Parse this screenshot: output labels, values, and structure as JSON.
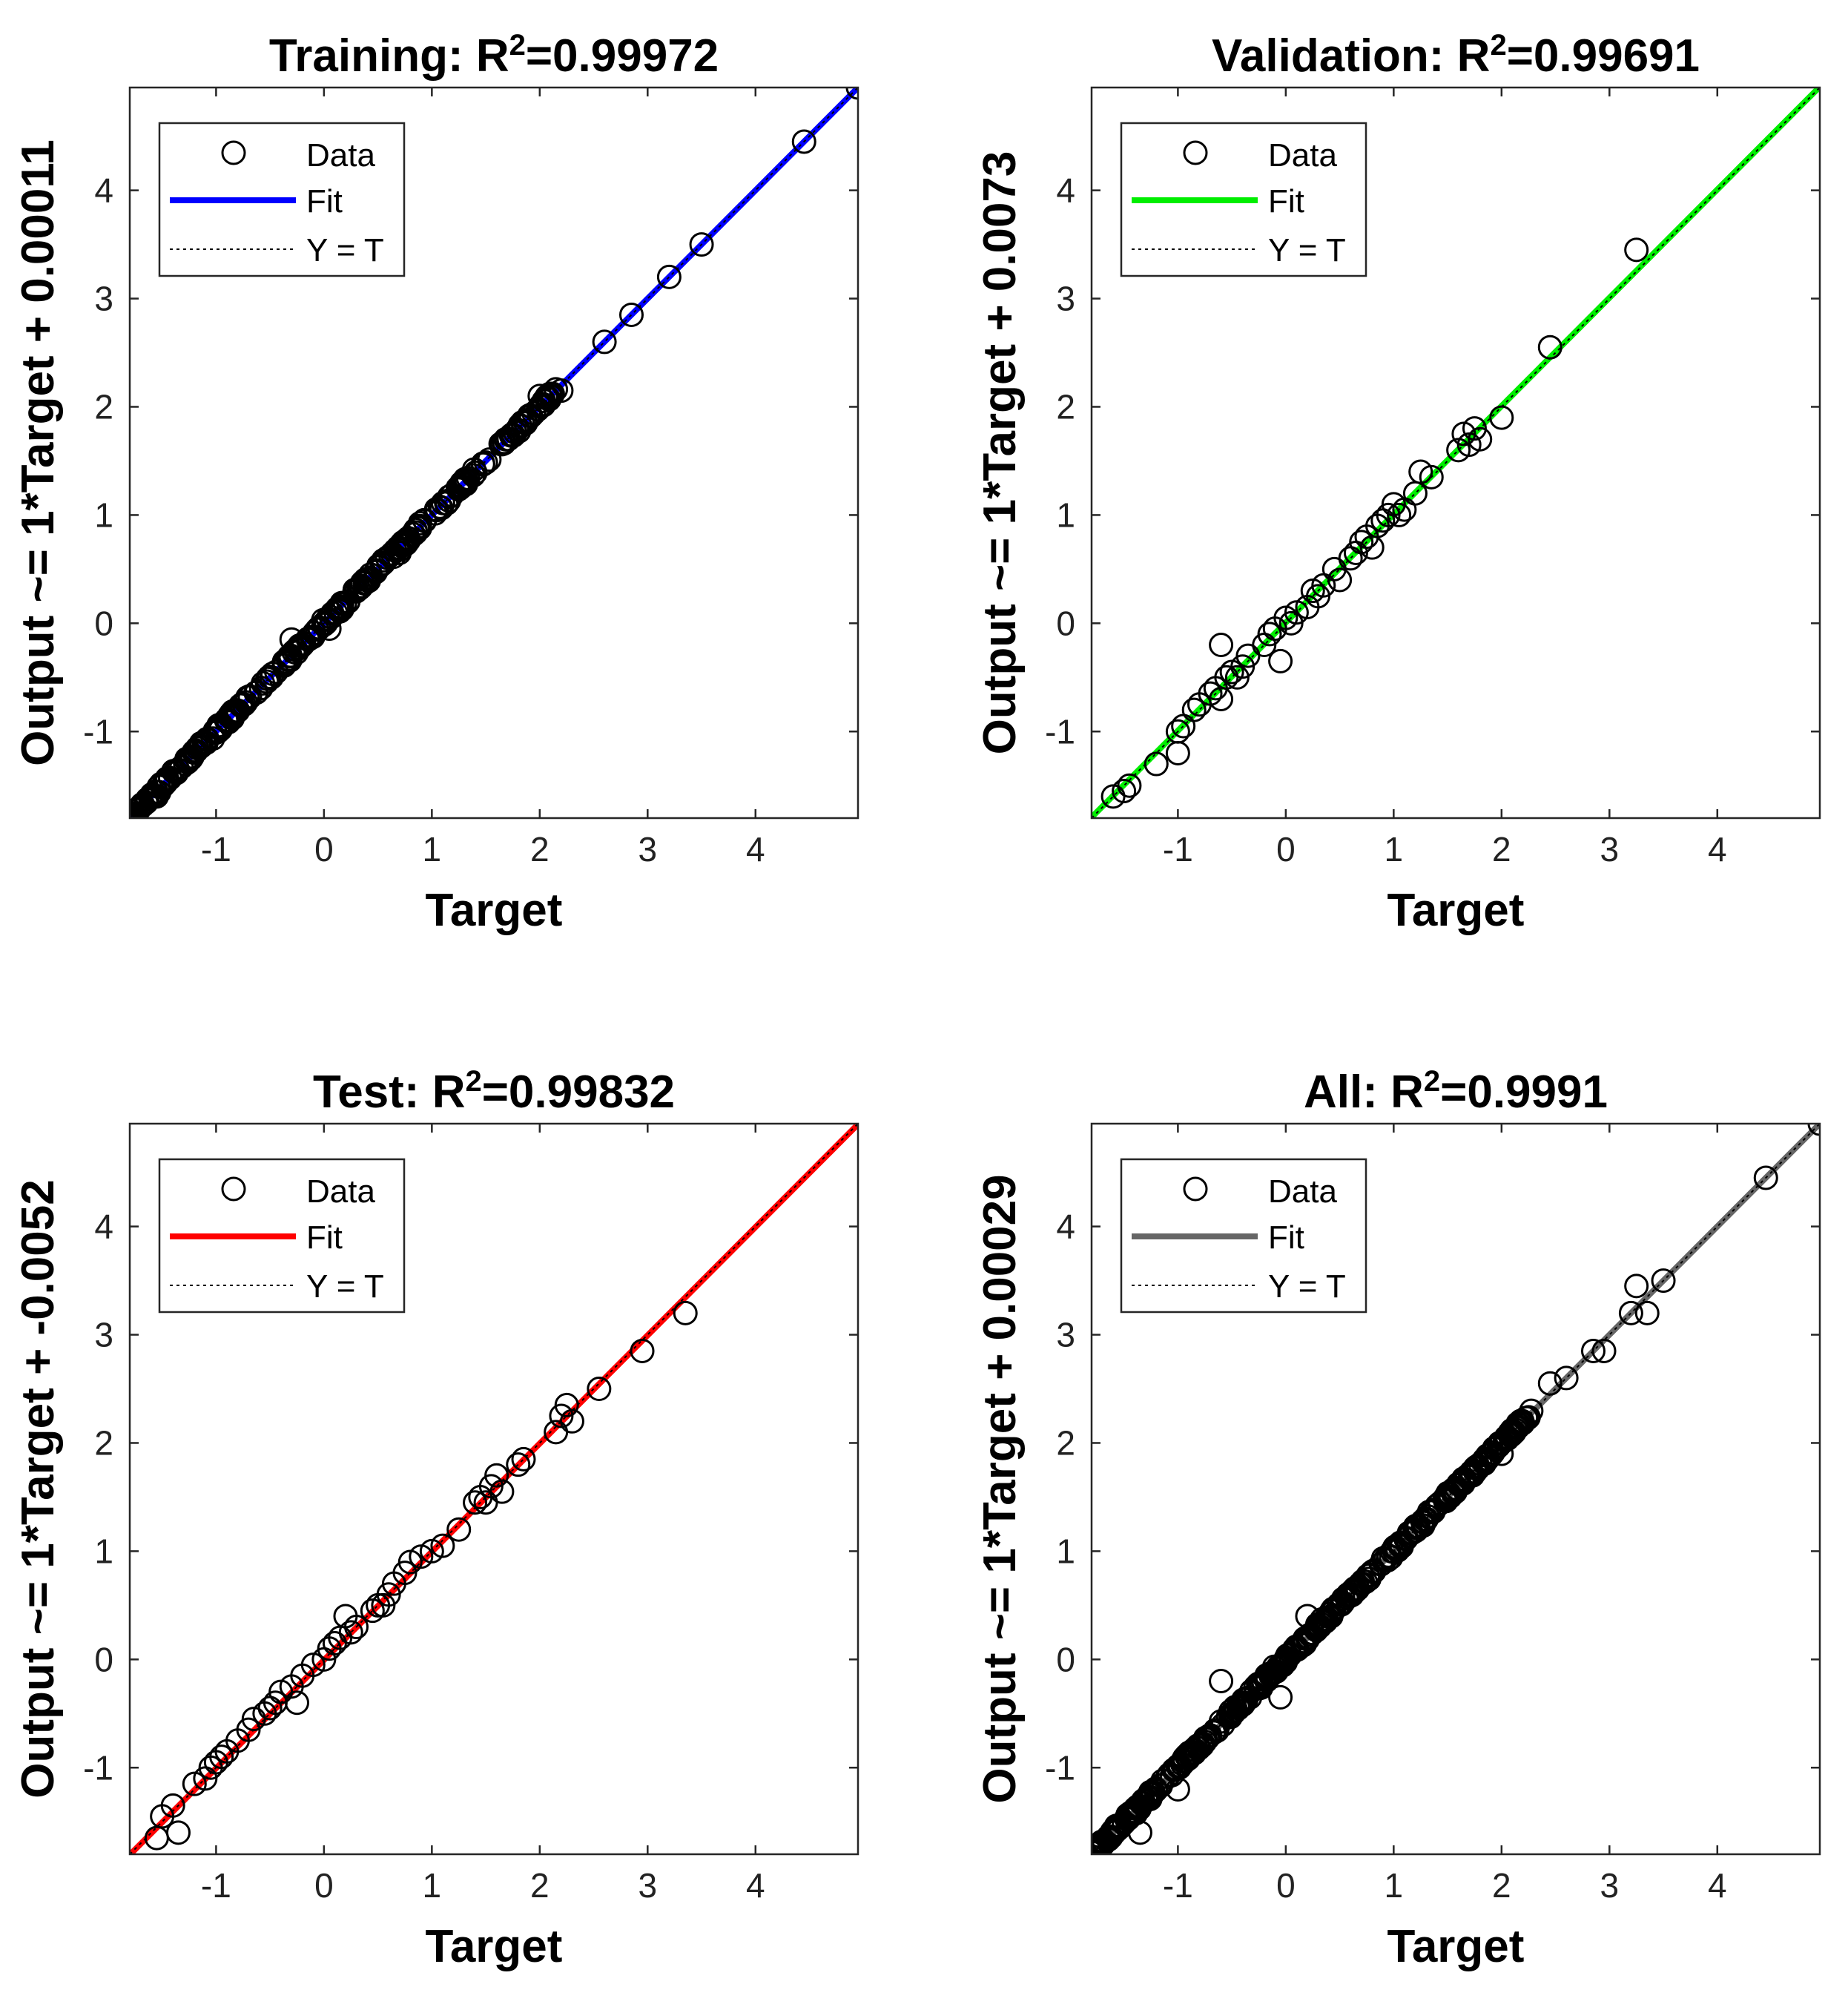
{
  "colors": {
    "training_fit": "#0000ff",
    "validation_fit": "#00ee00",
    "test_fit": "#ff0000",
    "all_fit": "#666666",
    "points": "#000000"
  },
  "legend_labels": {
    "data": "Data",
    "fit": "Fit",
    "reference": "Y = T"
  },
  "chart_data": [
    {
      "type": "scatter",
      "panel": "training",
      "title_prefix": "Training: R",
      "title_sup": "2",
      "title_value": "=0.99972",
      "xlabel": "Target",
      "ylabel": "Output ~= 1*Target + 0.00011",
      "xlim": [
        -1.8,
        4.95
      ],
      "ylim": [
        -1.8,
        4.95
      ],
      "xticks": [
        "-1",
        "0",
        "1",
        "2",
        "3",
        "4"
      ],
      "yticks": [
        "-1",
        "0",
        "1",
        "2",
        "3",
        "4"
      ],
      "fit": {
        "slope": 1,
        "intercept": 0.00011
      },
      "legend_position": "top-left",
      "outliers": [
        [
          -1.8,
          -1.82
        ],
        [
          -1.7,
          -1.7
        ],
        [
          -1.55,
          -1.6
        ],
        [
          -0.3,
          -0.15
        ],
        [
          0.05,
          -0.05
        ],
        [
          0.7,
          0.65
        ],
        [
          2.0,
          2.1
        ],
        [
          2.2,
          2.15
        ],
        [
          2.6,
          2.6
        ],
        [
          2.85,
          2.85
        ],
        [
          3.2,
          3.2
        ],
        [
          3.5,
          3.5
        ],
        [
          4.45,
          4.45
        ],
        [
          4.95,
          4.95
        ]
      ],
      "point_count_estimate": 300,
      "dense_range": [
        -1.8,
        2.2
      ]
    },
    {
      "type": "scatter",
      "panel": "validation",
      "title_prefix": "Validation: R",
      "title_sup": "2",
      "title_value": "=0.99691",
      "xlabel": "Target",
      "ylabel": "Output ~= 1*Target + 0.0073",
      "xlim": [
        -1.8,
        4.95
      ],
      "ylim": [
        -1.8,
        4.95
      ],
      "xticks": [
        "-1",
        "0",
        "1",
        "2",
        "3",
        "4"
      ],
      "yticks": [
        "-1",
        "0",
        "1",
        "2",
        "3",
        "4"
      ],
      "fit": {
        "slope": 1,
        "intercept": 0.0073
      },
      "legend_position": "top-left",
      "points": [
        [
          -1.6,
          -1.6
        ],
        [
          -1.5,
          -1.55
        ],
        [
          -1.45,
          -1.5
        ],
        [
          -1.2,
          -1.3
        ],
        [
          -1.0,
          -1.0
        ],
        [
          -1.0,
          -1.2
        ],
        [
          -0.95,
          -0.95
        ],
        [
          -0.85,
          -0.8
        ],
        [
          -0.8,
          -0.75
        ],
        [
          -0.7,
          -0.65
        ],
        [
          -0.65,
          -0.6
        ],
        [
          -0.6,
          -0.2
        ],
        [
          -0.6,
          -0.7
        ],
        [
          -0.55,
          -0.5
        ],
        [
          -0.5,
          -0.45
        ],
        [
          -0.45,
          -0.5
        ],
        [
          -0.4,
          -0.4
        ],
        [
          -0.35,
          -0.3
        ],
        [
          -0.2,
          -0.2
        ],
        [
          -0.15,
          -0.1
        ],
        [
          -0.1,
          -0.05
        ],
        [
          -0.05,
          -0.35
        ],
        [
          0.0,
          0.05
        ],
        [
          0.05,
          0.0
        ],
        [
          0.1,
          0.1
        ],
        [
          0.2,
          0.15
        ],
        [
          0.25,
          0.3
        ],
        [
          0.3,
          0.25
        ],
        [
          0.35,
          0.35
        ],
        [
          0.45,
          0.5
        ],
        [
          0.5,
          0.4
        ],
        [
          0.6,
          0.6
        ],
        [
          0.65,
          0.65
        ],
        [
          0.7,
          0.75
        ],
        [
          0.75,
          0.8
        ],
        [
          0.8,
          0.7
        ],
        [
          0.85,
          0.9
        ],
        [
          0.9,
          0.95
        ],
        [
          0.95,
          1.0
        ],
        [
          1.0,
          1.1
        ],
        [
          1.05,
          1.0
        ],
        [
          1.1,
          1.05
        ],
        [
          1.2,
          1.2
        ],
        [
          1.25,
          1.4
        ],
        [
          1.35,
          1.35
        ],
        [
          1.6,
          1.6
        ],
        [
          1.65,
          1.75
        ],
        [
          1.7,
          1.65
        ],
        [
          1.75,
          1.8
        ],
        [
          1.8,
          1.7
        ],
        [
          2.0,
          1.9
        ],
        [
          2.45,
          2.55
        ],
        [
          3.25,
          3.45
        ]
      ]
    },
    {
      "type": "scatter",
      "panel": "test",
      "title_prefix": "Test: R",
      "title_sup": "2",
      "title_value": "=0.99832",
      "xlabel": "Target",
      "ylabel": "Output ~= 1*Target + -0.0052",
      "xlim": [
        -1.8,
        4.95
      ],
      "ylim": [
        -1.8,
        4.95
      ],
      "xticks": [
        "-1",
        "0",
        "1",
        "2",
        "3",
        "4"
      ],
      "yticks": [
        "-1",
        "0",
        "1",
        "2",
        "3",
        "4"
      ],
      "fit": {
        "slope": 1,
        "intercept": -0.0052
      },
      "legend_position": "top-left",
      "points": [
        [
          -1.55,
          -1.65
        ],
        [
          -1.5,
          -1.45
        ],
        [
          -1.4,
          -1.35
        ],
        [
          -1.35,
          -1.6
        ],
        [
          -1.2,
          -1.15
        ],
        [
          -1.1,
          -1.1
        ],
        [
          -1.05,
          -1.0
        ],
        [
          -1.0,
          -0.95
        ],
        [
          -0.95,
          -0.9
        ],
        [
          -0.9,
          -0.85
        ],
        [
          -0.8,
          -0.75
        ],
        [
          -0.7,
          -0.65
        ],
        [
          -0.65,
          -0.55
        ],
        [
          -0.55,
          -0.5
        ],
        [
          -0.5,
          -0.45
        ],
        [
          -0.45,
          -0.4
        ],
        [
          -0.4,
          -0.3
        ],
        [
          -0.3,
          -0.25
        ],
        [
          -0.25,
          -0.4
        ],
        [
          -0.2,
          -0.15
        ],
        [
          -0.1,
          -0.05
        ],
        [
          0.0,
          0.0
        ],
        [
          0.05,
          0.1
        ],
        [
          0.1,
          0.15
        ],
        [
          0.15,
          0.2
        ],
        [
          0.2,
          0.4
        ],
        [
          0.25,
          0.25
        ],
        [
          0.3,
          0.3
        ],
        [
          0.45,
          0.45
        ],
        [
          0.5,
          0.5
        ],
        [
          0.55,
          0.5
        ],
        [
          0.6,
          0.6
        ],
        [
          0.65,
          0.7
        ],
        [
          0.75,
          0.8
        ],
        [
          0.8,
          0.9
        ],
        [
          0.9,
          0.95
        ],
        [
          1.0,
          1.0
        ],
        [
          1.1,
          1.05
        ],
        [
          1.25,
          1.2
        ],
        [
          1.4,
          1.45
        ],
        [
          1.45,
          1.5
        ],
        [
          1.5,
          1.45
        ],
        [
          1.55,
          1.6
        ],
        [
          1.6,
          1.7
        ],
        [
          1.65,
          1.55
        ],
        [
          1.8,
          1.8
        ],
        [
          1.85,
          1.85
        ],
        [
          2.15,
          2.1
        ],
        [
          2.2,
          2.25
        ],
        [
          2.25,
          2.35
        ],
        [
          2.3,
          2.2
        ],
        [
          2.55,
          2.5
        ],
        [
          2.95,
          2.85
        ],
        [
          3.35,
          3.2
        ]
      ]
    },
    {
      "type": "scatter",
      "panel": "all",
      "title_prefix": "All: R",
      "title_sup": "2",
      "title_value": "=0.9991",
      "xlabel": "Target",
      "ylabel": "Output ~= 1*Target + 0.00029",
      "xlim": [
        -1.8,
        4.95
      ],
      "ylim": [
        -1.8,
        4.95
      ],
      "xticks": [
        "-1",
        "0",
        "1",
        "2",
        "3",
        "4"
      ],
      "yticks": [
        "-1",
        "0",
        "1",
        "2",
        "3",
        "4"
      ],
      "fit": {
        "slope": 1,
        "intercept": 0.00029
      },
      "legend_position": "top-left",
      "outliers": [
        [
          -1.8,
          -1.82
        ],
        [
          -1.7,
          -1.7
        ],
        [
          -1.35,
          -1.6
        ],
        [
          -1.0,
          -1.2
        ],
        [
          -0.6,
          -0.2
        ],
        [
          -0.05,
          -0.35
        ],
        [
          0.2,
          0.4
        ],
        [
          2.0,
          1.9
        ],
        [
          2.45,
          2.55
        ],
        [
          2.6,
          2.6
        ],
        [
          2.85,
          2.85
        ],
        [
          2.95,
          2.85
        ],
        [
          3.2,
          3.2
        ],
        [
          3.25,
          3.45
        ],
        [
          3.35,
          3.2
        ],
        [
          3.5,
          3.5
        ],
        [
          4.45,
          4.45
        ],
        [
          4.95,
          4.95
        ]
      ],
      "point_count_estimate": 420,
      "dense_range": [
        -1.8,
        2.3
      ]
    }
  ]
}
